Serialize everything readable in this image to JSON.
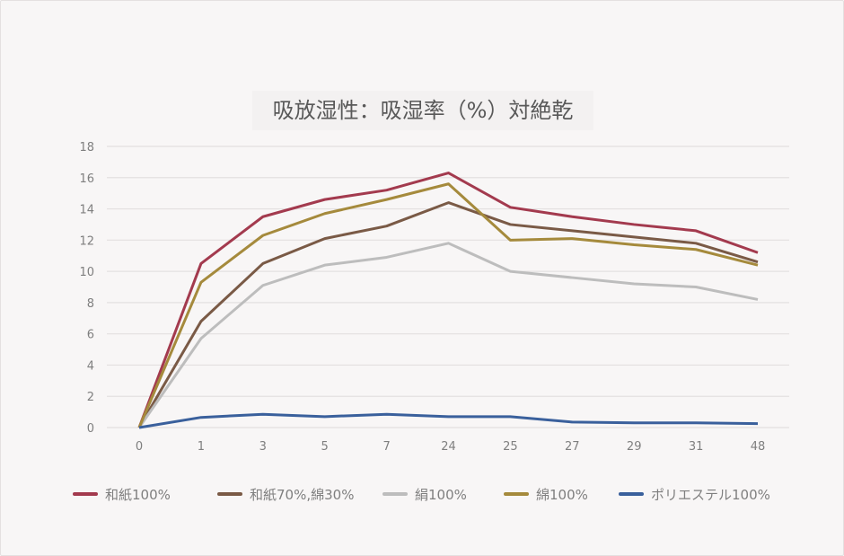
{
  "chart_data": {
    "type": "line",
    "title": "吸放湿性：吸湿率（%）対絶乾",
    "xlabel": "",
    "ylabel": "",
    "categories": [
      "0",
      "1",
      "3",
      "5",
      "7",
      "24",
      "25",
      "27",
      "29",
      "31",
      "48"
    ],
    "yticks": [
      "0",
      "2",
      "4",
      "6",
      "8",
      "10",
      "12",
      "14",
      "16",
      "18"
    ],
    "ylim": [
      0,
      18
    ],
    "grid": true,
    "legend_position": "bottom",
    "series": [
      {
        "name": "和紙100%",
        "color": "#a33a4e",
        "values": [
          0,
          10.5,
          13.5,
          14.6,
          15.2,
          16.3,
          14.1,
          13.5,
          13.0,
          12.6,
          11.2
        ]
      },
      {
        "name": "和紙70%,綿30%",
        "color": "#7a5a46",
        "values": [
          0,
          6.8,
          10.5,
          12.1,
          12.9,
          14.4,
          13.0,
          12.6,
          12.2,
          11.8,
          10.6
        ]
      },
      {
        "name": "絹100%",
        "color": "#bdbdbd",
        "values": [
          0,
          5.7,
          9.1,
          10.4,
          10.9,
          11.8,
          10.0,
          9.6,
          9.2,
          9.0,
          8.2
        ]
      },
      {
        "name": "綿100%",
        "color": "#a58a3c",
        "values": [
          0,
          9.3,
          12.3,
          13.7,
          14.6,
          15.6,
          12.0,
          12.1,
          11.7,
          11.4,
          10.4
        ]
      },
      {
        "name": "ポリエステル100%",
        "color": "#3a609c",
        "values": [
          0,
          0.65,
          0.85,
          0.7,
          0.85,
          0.7,
          0.7,
          0.35,
          0.3,
          0.3,
          0.25
        ]
      }
    ]
  }
}
